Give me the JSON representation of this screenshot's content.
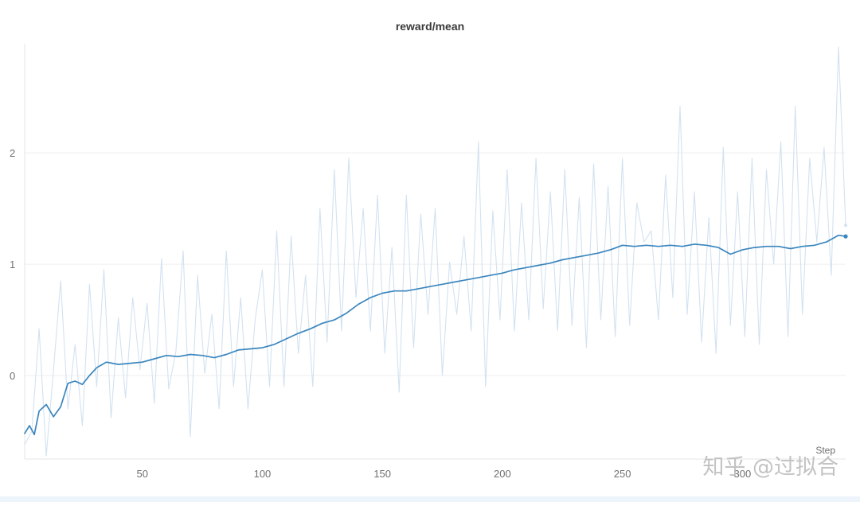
{
  "watermark": "知乎 @过拟合",
  "chart_data": {
    "type": "line",
    "title": "reward/mean",
    "xlabel": "Step",
    "ylabel": "",
    "xlim": [
      1,
      343
    ],
    "ylim": [
      -0.75,
      2.98
    ],
    "xticks": [
      50,
      100,
      150,
      200,
      250,
      300
    ],
    "yticks": [
      0,
      1,
      2
    ],
    "grid": true,
    "colors": {
      "raw": "#d2e2f1",
      "smoothed": "#3b86bd",
      "grid": "#efefef",
      "axis": "#e4e4e4"
    },
    "series": [
      {
        "role": "raw",
        "x": [
          1,
          4,
          7,
          10,
          13,
          16,
          19,
          22,
          25,
          28,
          31,
          34,
          37,
          40,
          43,
          46,
          49,
          52,
          55,
          58,
          61,
          64,
          67,
          70,
          73,
          76,
          79,
          82,
          85,
          88,
          91,
          94,
          97,
          100,
          103,
          106,
          109,
          112,
          115,
          118,
          121,
          124,
          127,
          130,
          133,
          136,
          139,
          142,
          145,
          148,
          151,
          154,
          157,
          160,
          163,
          166,
          169,
          172,
          175,
          178,
          181,
          184,
          187,
          190,
          193,
          196,
          199,
          202,
          205,
          208,
          211,
          214,
          217,
          220,
          223,
          226,
          229,
          232,
          235,
          238,
          241,
          244,
          247,
          250,
          253,
          256,
          259,
          262,
          265,
          268,
          271,
          274,
          277,
          280,
          283,
          286,
          289,
          292,
          295,
          298,
          301,
          304,
          307,
          310,
          313,
          316,
          319,
          322,
          325,
          328,
          331,
          334,
          337,
          340,
          343
        ],
        "y": [
          -0.62,
          -0.5,
          0.42,
          -0.72,
          0.05,
          0.85,
          -0.3,
          0.28,
          -0.45,
          0.82,
          -0.1,
          0.95,
          -0.38,
          0.52,
          -0.2,
          0.7,
          0.05,
          0.65,
          -0.25,
          1.05,
          -0.12,
          0.22,
          1.12,
          -0.55,
          0.9,
          0.02,
          0.55,
          -0.3,
          1.12,
          -0.1,
          0.7,
          -0.3,
          0.5,
          0.95,
          -0.1,
          1.3,
          -0.1,
          1.25,
          0.2,
          0.9,
          -0.1,
          1.5,
          0.3,
          1.85,
          0.4,
          1.95,
          0.7,
          1.5,
          0.4,
          1.62,
          0.2,
          1.15,
          -0.15,
          1.62,
          0.25,
          1.45,
          0.55,
          1.5,
          0.0,
          1.02,
          0.55,
          1.25,
          0.4,
          2.1,
          -0.1,
          1.48,
          0.5,
          1.85,
          0.4,
          1.55,
          0.5,
          1.95,
          0.6,
          1.65,
          0.4,
          1.85,
          0.45,
          1.6,
          0.25,
          1.9,
          0.5,
          1.7,
          0.35,
          1.95,
          0.45,
          1.55,
          1.2,
          1.3,
          0.5,
          1.8,
          0.7,
          2.42,
          0.55,
          1.65,
          0.3,
          1.42,
          0.2,
          2.05,
          0.45,
          1.65,
          0.35,
          1.95,
          0.28,
          1.85,
          1.0,
          2.1,
          0.35,
          2.42,
          0.55,
          1.95,
          1.2,
          2.05,
          0.9,
          2.95,
          1.35
        ]
      },
      {
        "role": "smoothed",
        "x": [
          1,
          3,
          5,
          7,
          10,
          13,
          16,
          19,
          22,
          25,
          28,
          31,
          35,
          40,
          45,
          50,
          55,
          60,
          65,
          70,
          75,
          80,
          85,
          90,
          95,
          100,
          105,
          110,
          115,
          120,
          125,
          130,
          135,
          140,
          145,
          150,
          155,
          160,
          165,
          170,
          175,
          180,
          185,
          190,
          195,
          200,
          205,
          210,
          215,
          220,
          225,
          230,
          235,
          240,
          245,
          250,
          255,
          260,
          265,
          270,
          275,
          280,
          285,
          290,
          295,
          300,
          305,
          310,
          315,
          320,
          325,
          330,
          335,
          340,
          343
        ],
        "y": [
          -0.52,
          -0.45,
          -0.53,
          -0.32,
          -0.26,
          -0.37,
          -0.28,
          -0.07,
          -0.05,
          -0.08,
          0.0,
          0.07,
          0.12,
          0.1,
          0.11,
          0.12,
          0.15,
          0.18,
          0.17,
          0.19,
          0.18,
          0.16,
          0.19,
          0.23,
          0.24,
          0.25,
          0.28,
          0.33,
          0.38,
          0.42,
          0.47,
          0.5,
          0.56,
          0.64,
          0.7,
          0.74,
          0.76,
          0.76,
          0.78,
          0.8,
          0.82,
          0.84,
          0.86,
          0.88,
          0.9,
          0.92,
          0.95,
          0.97,
          0.99,
          1.01,
          1.04,
          1.06,
          1.08,
          1.1,
          1.13,
          1.17,
          1.16,
          1.17,
          1.16,
          1.17,
          1.16,
          1.18,
          1.17,
          1.15,
          1.09,
          1.13,
          1.15,
          1.16,
          1.16,
          1.14,
          1.16,
          1.17,
          1.2,
          1.26,
          1.25
        ]
      }
    ]
  }
}
